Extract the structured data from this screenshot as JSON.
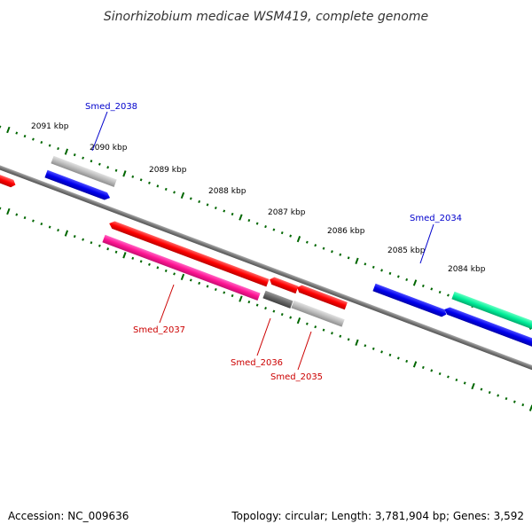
{
  "title": "Sinorhizobium medicae WSM419, complete genome",
  "footer": {
    "accession": "Accession: NC_009636",
    "summary": "Topology: circular; Length: 3,781,904 bp; Genes: 3,592"
  },
  "scale_labels": [
    "2091 kbp",
    "2090 kbp",
    "2089 kbp",
    "2088 kbp",
    "2087 kbp",
    "2086 kbp",
    "2085 kbp",
    "2084 kbp"
  ],
  "genes": [
    {
      "label": "Smed_2038",
      "color": "#0000cc"
    },
    {
      "label": "Smed_2037",
      "color": "#cc0000"
    },
    {
      "label": "Smed_2036",
      "color": "#cc0000"
    },
    {
      "label": "Smed_2035",
      "color": "#cc0000"
    },
    {
      "label": "Smed_2034",
      "color": "#0000cc"
    }
  ],
  "colors": {
    "backbone": "#777777",
    "tick": "#006600",
    "forward_blue": "#0000ee",
    "reverse_red": "#ff0000",
    "pink": "#ff1493",
    "gray_light": "#bbbbbb",
    "gray_dark": "#666666",
    "green": "#00ee99"
  }
}
